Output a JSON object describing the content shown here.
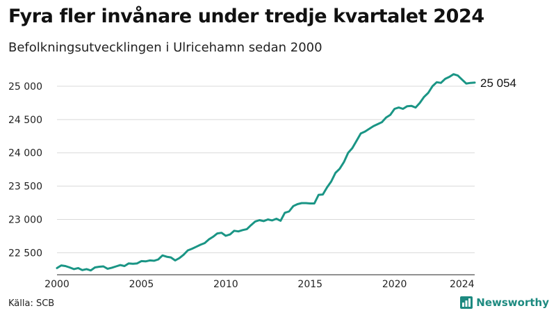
{
  "chart_data": {
    "type": "line",
    "title": "Fyra fler invånare under tredje kvartalet 2024",
    "subtitle": "Befolkningsutvecklingen i Ulricehamn sedan 2000",
    "xlabel": "",
    "ylabel": "",
    "x_ticks": [
      2000,
      2005,
      2010,
      2015,
      2020,
      2024
    ],
    "y_ticks": [
      22500,
      23000,
      23500,
      24000,
      24500,
      25000
    ],
    "y_tick_labels": [
      "22 500",
      "23 000",
      "23 500",
      "24 000",
      "24 500",
      "25 000"
    ],
    "xlim": [
      2000,
      2024.75
    ],
    "ylim": [
      22170,
      25250
    ],
    "grid": "horizontal",
    "end_label": "25 054",
    "series": [
      {
        "color": "#1a9585",
        "points": [
          [
            2000.0,
            22270
          ],
          [
            2000.25,
            22310
          ],
          [
            2000.5,
            22300
          ],
          [
            2000.75,
            22280
          ],
          [
            2001.0,
            22255
          ],
          [
            2001.25,
            22270
          ],
          [
            2001.5,
            22240
          ],
          [
            2001.75,
            22255
          ],
          [
            2002.0,
            22235
          ],
          [
            2002.25,
            22280
          ],
          [
            2002.5,
            22290
          ],
          [
            2002.75,
            22295
          ],
          [
            2003.0,
            22260
          ],
          [
            2003.25,
            22275
          ],
          [
            2003.5,
            22295
          ],
          [
            2003.75,
            22315
          ],
          [
            2004.0,
            22300
          ],
          [
            2004.25,
            22340
          ],
          [
            2004.5,
            22335
          ],
          [
            2004.75,
            22340
          ],
          [
            2005.0,
            22375
          ],
          [
            2005.25,
            22370
          ],
          [
            2005.5,
            22385
          ],
          [
            2005.75,
            22380
          ],
          [
            2006.0,
            22400
          ],
          [
            2006.25,
            22460
          ],
          [
            2006.5,
            22440
          ],
          [
            2006.75,
            22430
          ],
          [
            2007.0,
            22385
          ],
          [
            2007.25,
            22420
          ],
          [
            2007.5,
            22470
          ],
          [
            2007.75,
            22535
          ],
          [
            2008.0,
            22560
          ],
          [
            2008.25,
            22590
          ],
          [
            2008.5,
            22620
          ],
          [
            2008.75,
            22645
          ],
          [
            2009.0,
            22700
          ],
          [
            2009.25,
            22740
          ],
          [
            2009.5,
            22790
          ],
          [
            2009.75,
            22800
          ],
          [
            2010.0,
            22755
          ],
          [
            2010.25,
            22775
          ],
          [
            2010.5,
            22830
          ],
          [
            2010.75,
            22820
          ],
          [
            2011.0,
            22840
          ],
          [
            2011.25,
            22855
          ],
          [
            2011.5,
            22915
          ],
          [
            2011.75,
            22970
          ],
          [
            2012.0,
            22990
          ],
          [
            2012.25,
            22975
          ],
          [
            2012.5,
            23000
          ],
          [
            2012.75,
            22985
          ],
          [
            2013.0,
            23010
          ],
          [
            2013.25,
            22980
          ],
          [
            2013.5,
            23100
          ],
          [
            2013.75,
            23120
          ],
          [
            2014.0,
            23200
          ],
          [
            2014.25,
            23230
          ],
          [
            2014.5,
            23245
          ],
          [
            2014.75,
            23245
          ],
          [
            2015.0,
            23240
          ],
          [
            2015.25,
            23240
          ],
          [
            2015.5,
            23370
          ],
          [
            2015.75,
            23375
          ],
          [
            2016.0,
            23480
          ],
          [
            2016.25,
            23570
          ],
          [
            2016.5,
            23700
          ],
          [
            2016.75,
            23760
          ],
          [
            2017.0,
            23860
          ],
          [
            2017.25,
            24000
          ],
          [
            2017.5,
            24070
          ],
          [
            2017.75,
            24180
          ],
          [
            2018.0,
            24290
          ],
          [
            2018.25,
            24320
          ],
          [
            2018.5,
            24360
          ],
          [
            2018.75,
            24400
          ],
          [
            2019.0,
            24430
          ],
          [
            2019.25,
            24460
          ],
          [
            2019.5,
            24530
          ],
          [
            2019.75,
            24570
          ],
          [
            2020.0,
            24660
          ],
          [
            2020.25,
            24680
          ],
          [
            2020.5,
            24660
          ],
          [
            2020.75,
            24700
          ],
          [
            2021.0,
            24705
          ],
          [
            2021.25,
            24680
          ],
          [
            2021.5,
            24750
          ],
          [
            2021.75,
            24840
          ],
          [
            2022.0,
            24900
          ],
          [
            2022.25,
            25000
          ],
          [
            2022.5,
            25060
          ],
          [
            2022.75,
            25050
          ],
          [
            2023.0,
            25110
          ],
          [
            2023.25,
            25140
          ],
          [
            2023.5,
            25180
          ],
          [
            2023.75,
            25160
          ],
          [
            2024.0,
            25100
          ],
          [
            2024.25,
            25040
          ],
          [
            2024.5,
            25050
          ],
          [
            2024.75,
            25054
          ]
        ]
      }
    ]
  },
  "footer": {
    "source": "Källa: SCB",
    "brand": "Newsworthy",
    "brand_icon": "bar-chart-icon",
    "brand_color": "#1d8a80"
  }
}
